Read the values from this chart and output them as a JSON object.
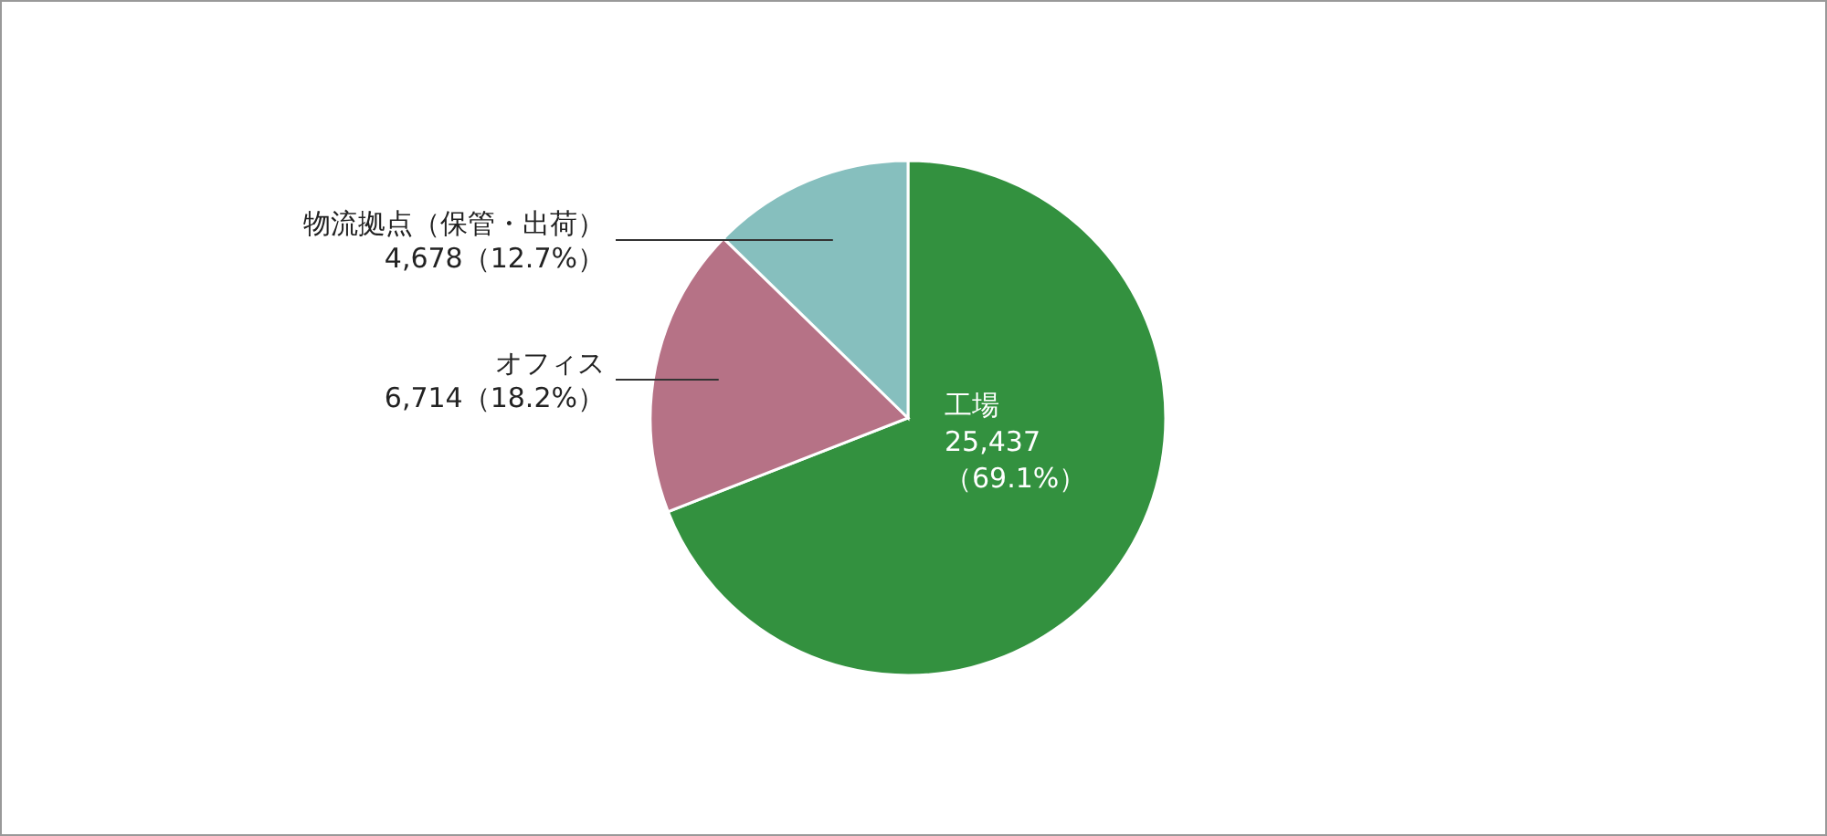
{
  "chart_data": {
    "type": "pie",
    "categories": [
      "工場",
      "オフィス",
      "物流拠点（保管・出荷）"
    ],
    "values": [
      25437,
      6714,
      4678
    ],
    "colors": [
      "#33913f",
      "#b67286",
      "#86bfbe"
    ],
    "value_labels": [
      "25,437\n（69.1%）",
      "6,714（18.2%）",
      "4,678（12.7%）"
    ]
  }
}
